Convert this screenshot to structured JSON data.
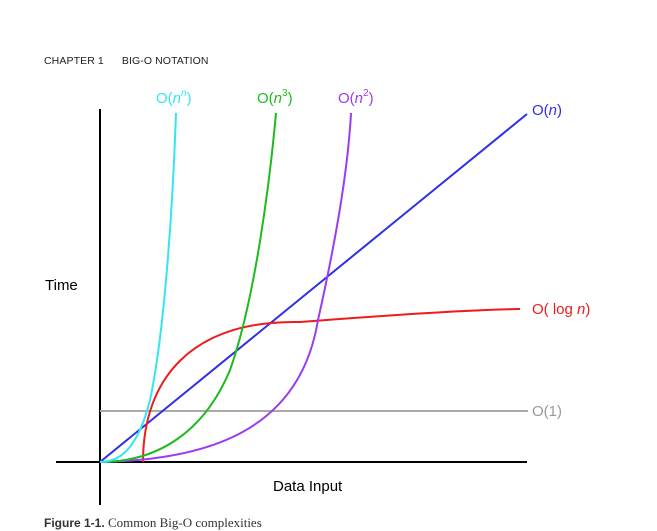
{
  "running_header": {
    "chapter": "CHAPTER 1",
    "title": "BIG-O NOTATION"
  },
  "figure": {
    "ylabel": "Time",
    "xlabel": "Data Input",
    "curves": [
      {
        "id": "nn",
        "label_prefix": "O(",
        "label_var": "n",
        "label_sup": "n",
        "label_suffix": ")",
        "color": "#33e6f2"
      },
      {
        "id": "n3",
        "label_prefix": "O(",
        "label_var": "n",
        "label_sup": "3",
        "label_suffix": ")",
        "color": "#1dbb1d"
      },
      {
        "id": "n2",
        "label_prefix": "O(",
        "label_var": "n",
        "label_sup": "2",
        "label_suffix": ")",
        "color": "#9b3cf0"
      },
      {
        "id": "n",
        "label_prefix": "O(",
        "label_var": "n",
        "label_sup": "",
        "label_suffix": ")",
        "color": "#2f2fe6"
      },
      {
        "id": "logn",
        "label_prefix": "O( log ",
        "label_var": "n",
        "label_sup": "",
        "label_suffix": ")",
        "color": "#ee1c1c"
      },
      {
        "id": "const",
        "label_prefix": "O(1)",
        "label_var": "",
        "label_sup": "",
        "label_suffix": "",
        "color": "#aaaaaa"
      }
    ]
  },
  "caption": {
    "figure_number": "Figure 1-1.",
    "text": "Common Big-O complexities"
  }
}
